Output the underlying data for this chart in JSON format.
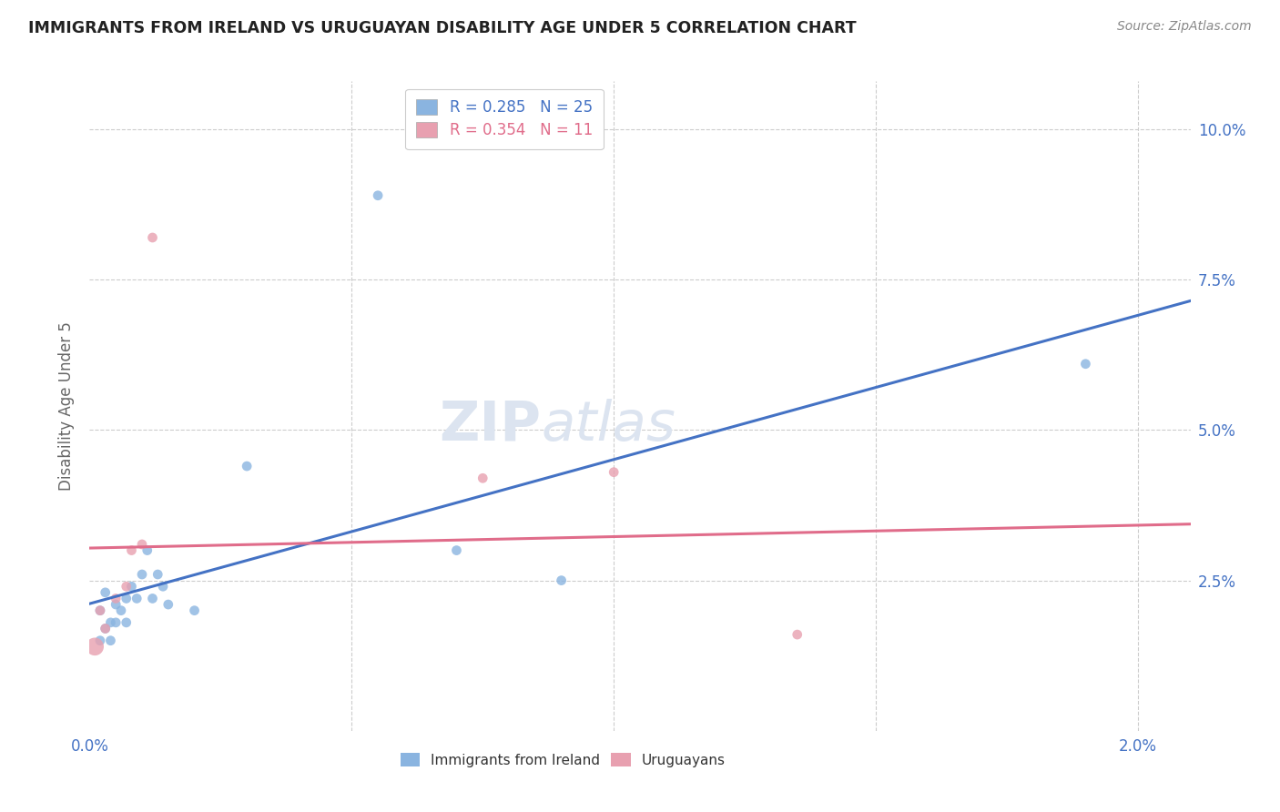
{
  "title": "IMMIGRANTS FROM IRELAND VS URUGUAYAN DISABILITY AGE UNDER 5 CORRELATION CHART",
  "source": "Source: ZipAtlas.com",
  "ylabel_label": "Disability Age Under 5",
  "xlim": [
    0.0,
    0.021
  ],
  "ylim": [
    0.0,
    0.108
  ],
  "x_ticks": [
    0.0,
    0.005,
    0.01,
    0.015,
    0.02
  ],
  "x_tick_labels": [
    "0.0%",
    "",
    "",
    "",
    "2.0%"
  ],
  "y_ticks": [
    0.0,
    0.025,
    0.05,
    0.075,
    0.1
  ],
  "y_tick_labels": [
    "",
    "2.5%",
    "5.0%",
    "7.5%",
    "10.0%"
  ],
  "blue_R": 0.285,
  "blue_N": 25,
  "pink_R": 0.354,
  "pink_N": 11,
  "blue_color": "#8ab4e0",
  "pink_color": "#e8a0b0",
  "blue_line_color": "#4472c4",
  "pink_line_color": "#e06c8a",
  "background_color": "#ffffff",
  "grid_color": "#cccccc",
  "title_color": "#222222",
  "axis_label_color": "#666666",
  "tick_label_color": "#4472c4",
  "watermark_color": "#dce4f0",
  "blue_points": [
    [
      0.0002,
      0.015
    ],
    [
      0.0002,
      0.02
    ],
    [
      0.0003,
      0.017
    ],
    [
      0.0003,
      0.023
    ],
    [
      0.0004,
      0.018
    ],
    [
      0.0004,
      0.015
    ],
    [
      0.0005,
      0.021
    ],
    [
      0.0005,
      0.018
    ],
    [
      0.0006,
      0.02
    ],
    [
      0.0007,
      0.022
    ],
    [
      0.0007,
      0.018
    ],
    [
      0.0008,
      0.024
    ],
    [
      0.0009,
      0.022
    ],
    [
      0.001,
      0.026
    ],
    [
      0.0011,
      0.03
    ],
    [
      0.0012,
      0.022
    ],
    [
      0.0013,
      0.026
    ],
    [
      0.0014,
      0.024
    ],
    [
      0.0015,
      0.021
    ],
    [
      0.002,
      0.02
    ],
    [
      0.003,
      0.044
    ],
    [
      0.0055,
      0.089
    ],
    [
      0.007,
      0.03
    ],
    [
      0.009,
      0.025
    ],
    [
      0.019,
      0.061
    ]
  ],
  "pink_points": [
    [
      0.0001,
      0.014
    ],
    [
      0.0002,
      0.02
    ],
    [
      0.0003,
      0.017
    ],
    [
      0.0005,
      0.022
    ],
    [
      0.0007,
      0.024
    ],
    [
      0.0008,
      0.03
    ],
    [
      0.001,
      0.031
    ],
    [
      0.0012,
      0.082
    ],
    [
      0.0075,
      0.042
    ],
    [
      0.01,
      0.043
    ],
    [
      0.0135,
      0.016
    ]
  ],
  "blue_point_sizes": [
    60,
    60,
    60,
    60,
    60,
    60,
    60,
    60,
    60,
    60,
    60,
    60,
    60,
    60,
    60,
    60,
    60,
    60,
    60,
    60,
    60,
    60,
    60,
    60,
    60
  ],
  "pink_point_sizes": [
    200,
    60,
    60,
    60,
    60,
    60,
    60,
    60,
    60,
    60,
    60
  ]
}
